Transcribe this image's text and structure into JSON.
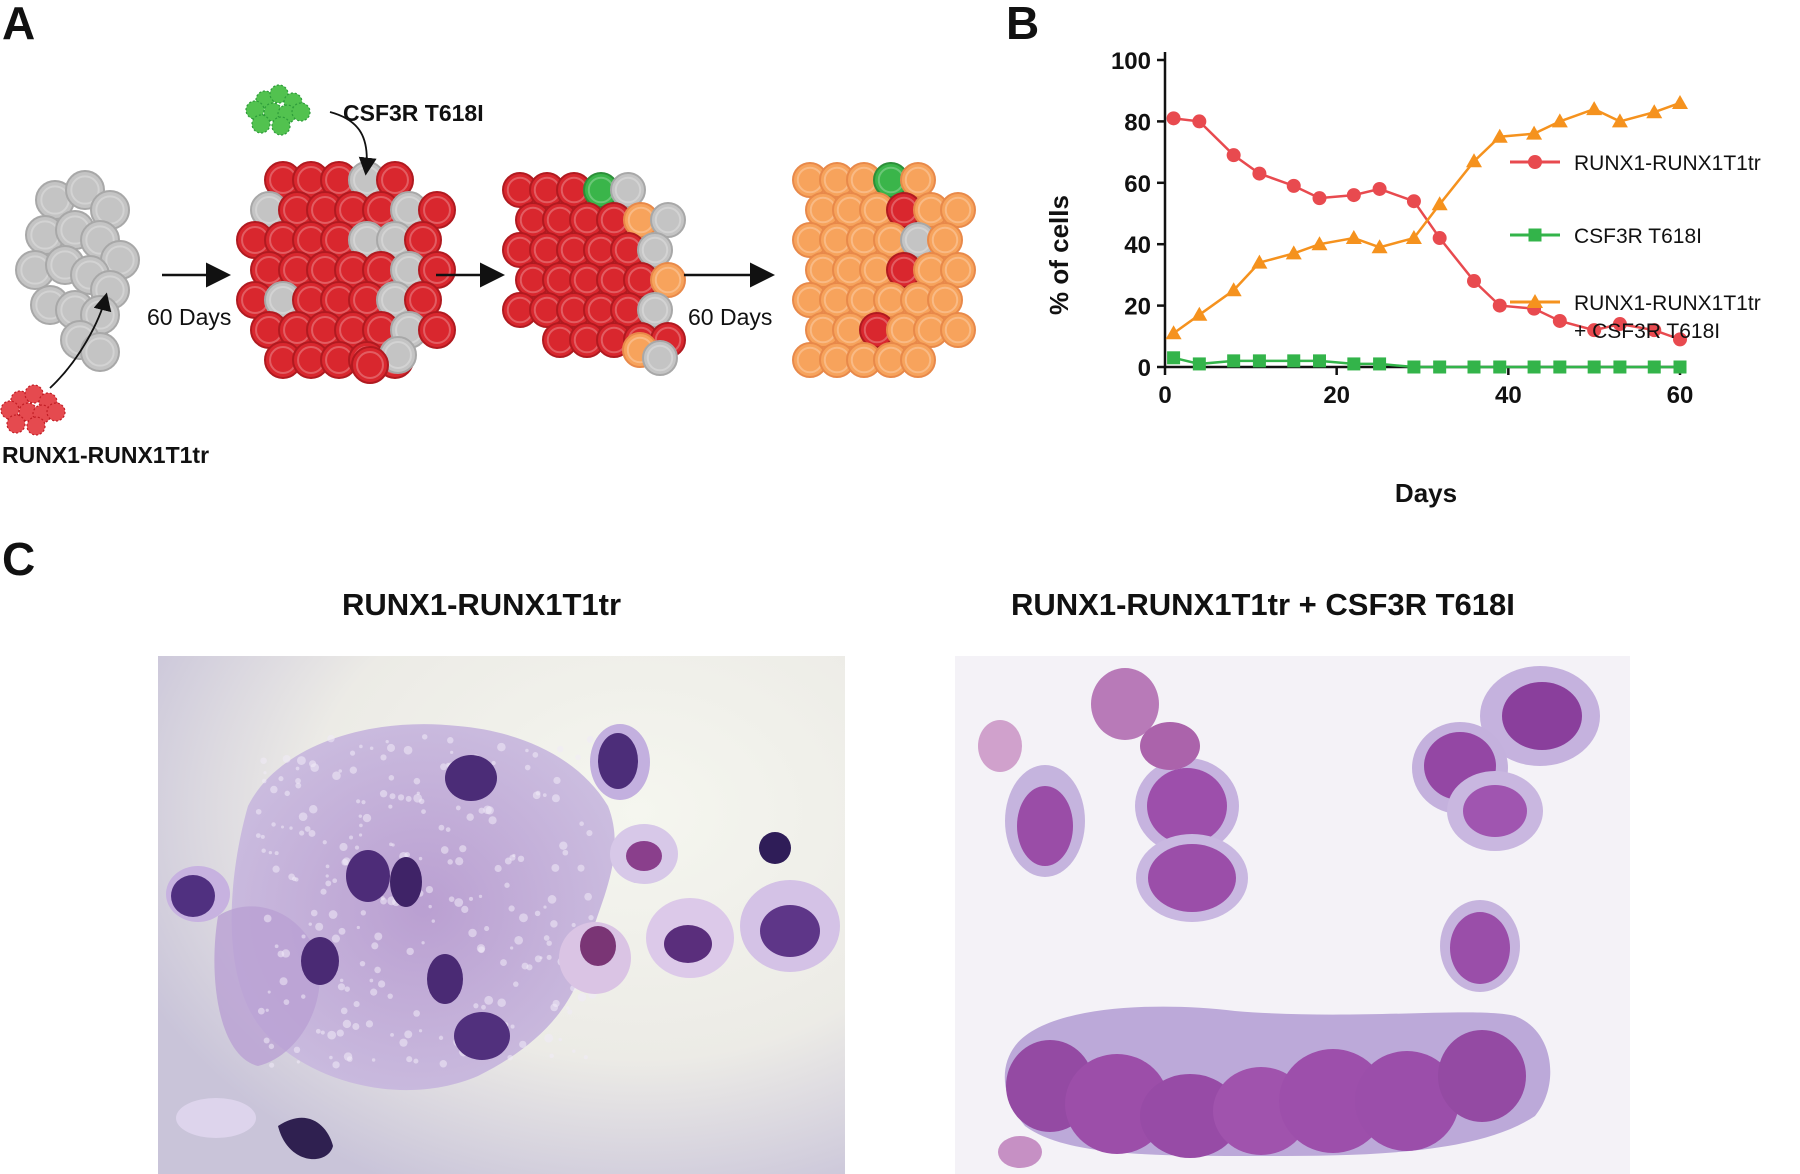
{
  "panels": {
    "a": "A",
    "b": "B",
    "c": "C"
  },
  "panel_a": {
    "csf3r_label": "CSF3R T618I",
    "runx_label": "RUNX1-RUNX1T1tr",
    "step1_label": "60 Days",
    "step2_label": "60 Days"
  },
  "panel_c": {
    "left_title": "RUNX1-RUNX1T1tr",
    "right_title": "RUNX1-RUNX1T1tr + CSF3R T618I"
  },
  "colors": {
    "grey_cell": "#c4c4c4",
    "red_cell": "#d9272e",
    "orange_cell": "#f7a35c",
    "green_cell": "#3ab54a",
    "red_series": "#e84a4f",
    "green_series": "#33b44a",
    "orange_series": "#f5921e"
  },
  "chart_data": {
    "type": "line",
    "xlabel": "Days",
    "ylabel": "% of cells",
    "xlim": [
      0,
      60
    ],
    "ylim": [
      0,
      100
    ],
    "xticks": [
      0,
      20,
      40,
      60
    ],
    "yticks": [
      0,
      20,
      40,
      60,
      80,
      100
    ],
    "legend_position": "right",
    "series": [
      {
        "name": "RUNX1-RUNX1T1tr",
        "marker": "circle",
        "x": [
          1,
          4,
          8,
          11,
          15,
          18,
          22,
          25,
          29,
          32,
          36,
          39,
          43,
          46,
          50,
          53,
          57,
          60
        ],
        "y": [
          81,
          80,
          69,
          63,
          59,
          55,
          56,
          58,
          54,
          42,
          28,
          20,
          19,
          15,
          12,
          14,
          12,
          9
        ]
      },
      {
        "name": "CSF3R T618I",
        "marker": "square",
        "x": [
          1,
          4,
          8,
          11,
          15,
          18,
          22,
          25,
          29,
          32,
          36,
          39,
          43,
          46,
          50,
          53,
          57,
          60
        ],
        "y": [
          3,
          1,
          2,
          2,
          2,
          2,
          1,
          1,
          0,
          0,
          0,
          0,
          0,
          0,
          0,
          0,
          0,
          0
        ]
      },
      {
        "name": "RUNX1-RUNX1T1tr\n+ CSF3R T618I",
        "marker": "triangle",
        "x": [
          1,
          4,
          8,
          11,
          15,
          18,
          22,
          25,
          29,
          32,
          36,
          39,
          43,
          46,
          50,
          53,
          57,
          60
        ],
        "y": [
          11,
          17,
          25,
          34,
          37,
          40,
          42,
          39,
          42,
          53,
          67,
          75,
          76,
          80,
          84,
          80,
          83,
          86
        ]
      }
    ]
  }
}
